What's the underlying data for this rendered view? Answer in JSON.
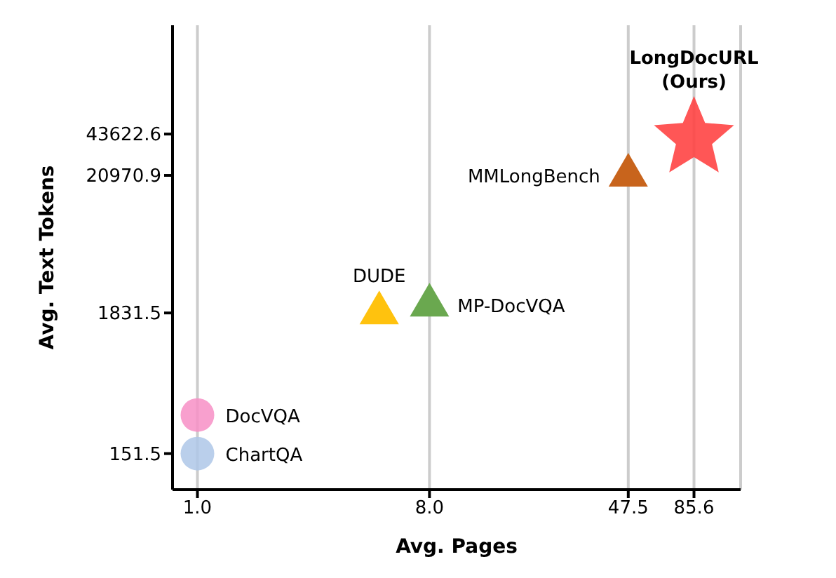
{
  "chart_data": {
    "type": "scatter",
    "xlabel": "Avg. Pages",
    "ylabel": "Avg. Text Tokens",
    "log": "xy",
    "grid": "x",
    "legend": false,
    "xlim": [
      0.8,
      130
    ],
    "xticks": [
      {
        "value": 1,
        "label": "1.0"
      },
      {
        "value": 8,
        "label": "8.0"
      },
      47.5,
      85.6
    ],
    "ylim": [
      80,
      300000
    ],
    "yticks": [
      151.5,
      1831.5,
      20970.9,
      43622.6
    ],
    "series": [
      {
        "name": "ChartQA",
        "color": "#aec7e8",
        "marker": "circle",
        "x": [
          1.0
        ],
        "values": [
          151.5
        ]
      },
      {
        "name": "DocVQA",
        "color": "#f78fc6",
        "marker": "circle",
        "x": [
          1.0
        ],
        "values": [
          300
        ]
      },
      {
        "name": "DUDE",
        "color": "#ffc20e",
        "marker": "triangle",
        "x": [
          5.1
        ],
        "values": [
          1831.5
        ]
      },
      {
        "name": "MP-DocVQA",
        "color": "#6aa84f",
        "marker": "triangle",
        "x": [
          8.0
        ],
        "values": [
          2100
        ]
      },
      {
        "name": "MMLongBench",
        "color": "#c8641c",
        "marker": "triangle",
        "x": [
          47.5
        ],
        "values": [
          20970.9
        ]
      },
      {
        "name": "LongDocURL (Ours)",
        "color": "#ff4444",
        "marker": "star",
        "x": [
          85.6
        ],
        "values": [
          43622.6
        ]
      }
    ]
  }
}
